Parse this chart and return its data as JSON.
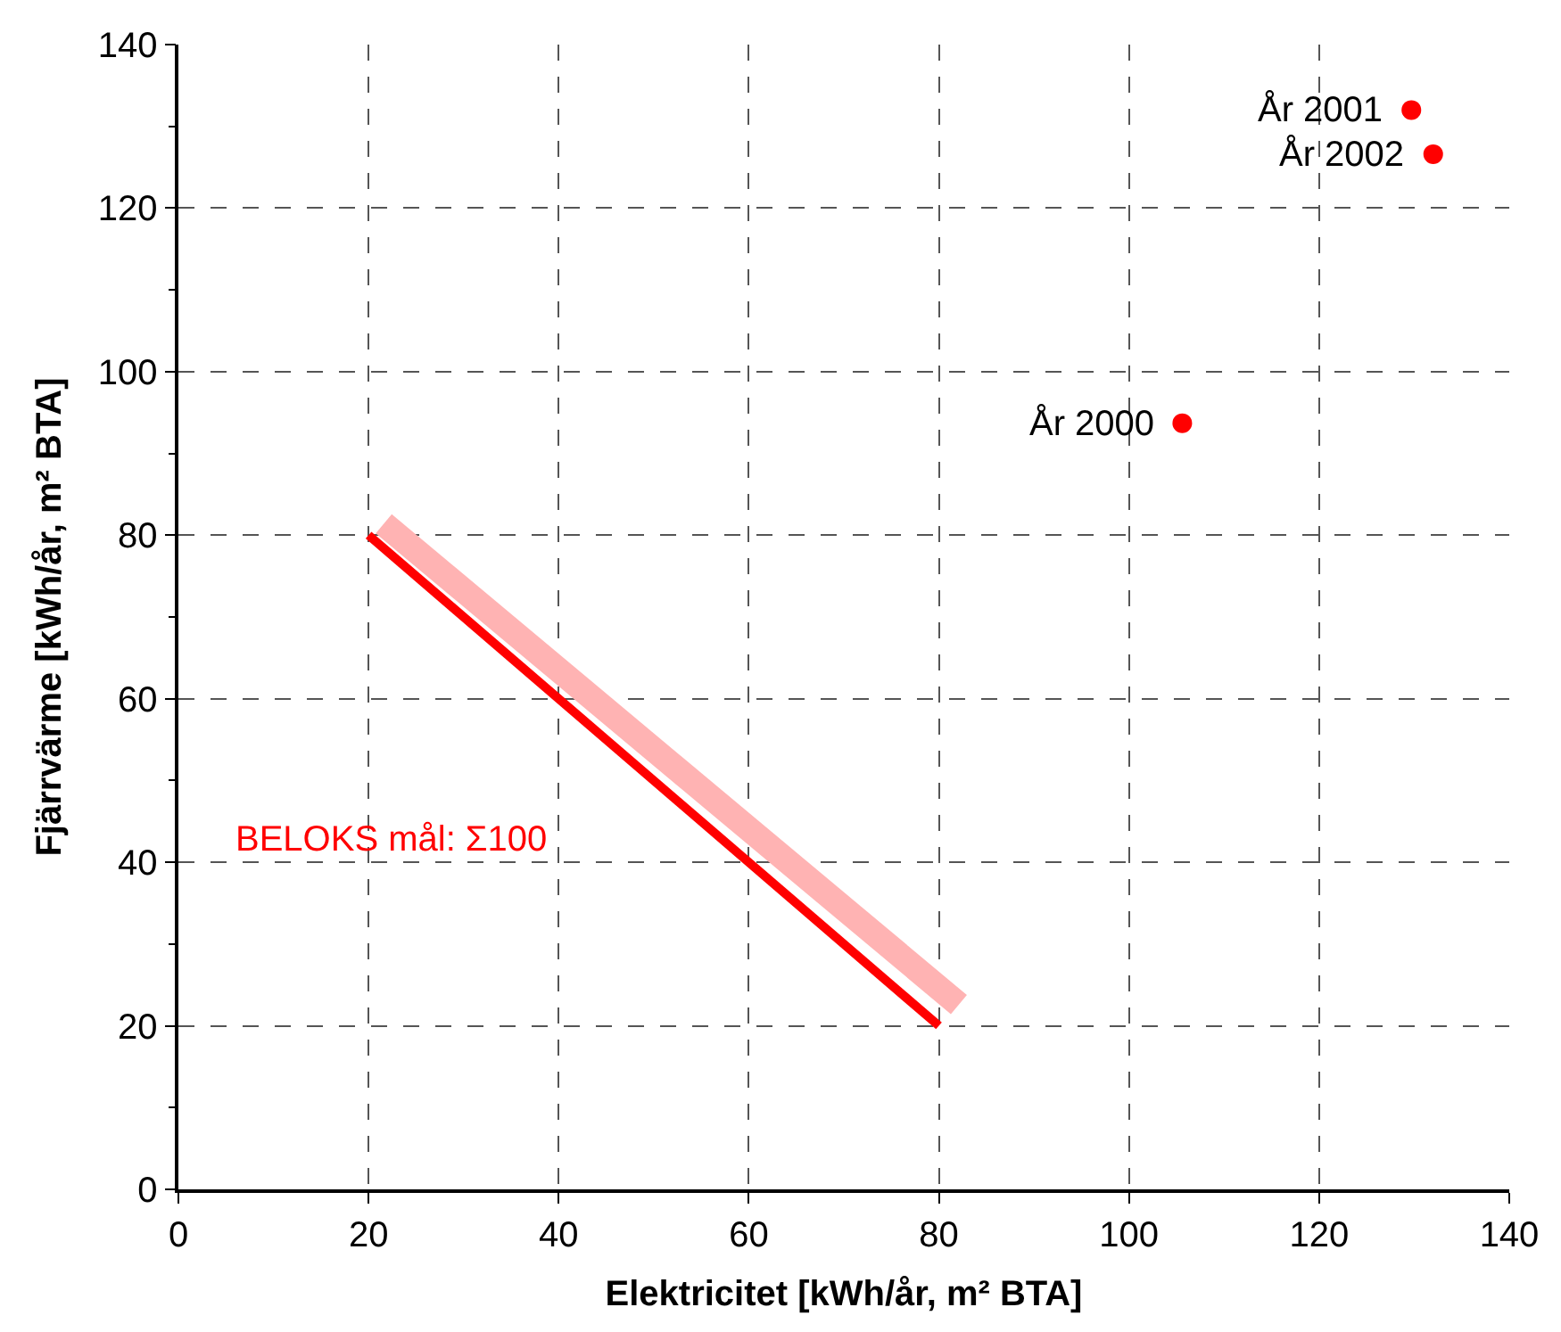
{
  "chart_data": {
    "type": "scatter",
    "xlabel": "Elektricitet [kWh/år, m² BTA]",
    "ylabel": "Fjärrvärme [kWh/år, m² BTA]",
    "xlim": [
      0,
      140
    ],
    "ylim": [
      0,
      140
    ],
    "xticks": [
      0,
      20,
      40,
      60,
      80,
      100,
      120,
      140
    ],
    "yticks": [
      0,
      20,
      40,
      60,
      80,
      100,
      120,
      140
    ],
    "grid": true,
    "series": [
      {
        "type": "line",
        "color": "#ffb3b3",
        "x": [
          21.6,
          82.1
        ],
        "values": [
          81.4,
          22.6
        ],
        "marker": "none"
      },
      {
        "type": "line",
        "color": "#ff0000",
        "x": [
          20,
          80
        ],
        "values": [
          80,
          20
        ],
        "marker": "none"
      },
      {
        "color": "#ff0000",
        "x": [
          105.6,
          129.7,
          132.0
        ],
        "values": [
          93.7,
          132.0,
          126.6
        ],
        "marker": "circle"
      }
    ],
    "annotations": [
      {
        "text": "År 2000",
        "x": 105.6,
        "y": 93.7
      },
      {
        "text": "År 2001",
        "x": 129.7,
        "y": 132.0
      },
      {
        "text": "År 2002",
        "x": 132.0,
        "y": 126.6
      },
      "BELOKS mål: Σ100"
    ]
  }
}
